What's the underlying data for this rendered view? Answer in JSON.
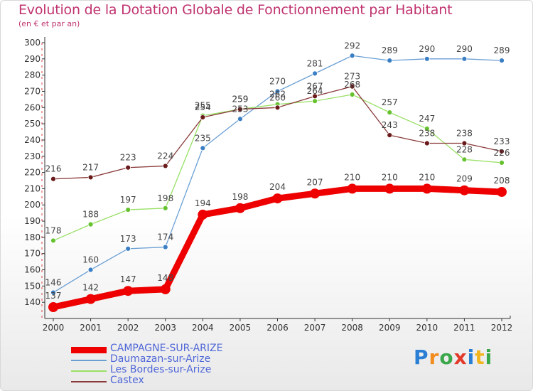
{
  "title": "Evolution de la Dotation Globale de Fonctionnement par Habitant",
  "subtitle": "(en € et par an)",
  "brand": {
    "letters": [
      {
        "ch": "P",
        "color": "#2a7fd4"
      },
      {
        "ch": "r",
        "color": "#f28c1e"
      },
      {
        "ch": "o",
        "color": "#3aa84a"
      },
      {
        "ch": "x",
        "color": "#e23a2a"
      },
      {
        "ch": "i",
        "color": "#2a7fd4"
      },
      {
        "ch": "t",
        "color": "#f2b51e"
      },
      {
        "ch": "i",
        "color": "#3aa84a"
      }
    ]
  },
  "chart_data": {
    "type": "line",
    "x": [
      "2000",
      "2001",
      "2002",
      "2003",
      "2004",
      "2005",
      "2006",
      "2007",
      "2008",
      "2009",
      "2010",
      "2011",
      "2012"
    ],
    "ylim": [
      130,
      300
    ],
    "yticks": [
      140,
      150,
      160,
      170,
      180,
      190,
      200,
      210,
      220,
      230,
      240,
      250,
      260,
      270,
      280,
      290,
      300
    ],
    "grid": false,
    "legend_position": "bottom-left",
    "series": [
      {
        "name": "CAMPAGNE-SUR-ARIZE",
        "color": "#ee0000",
        "marker_color": "#ee0000",
        "values": [
          137,
          142,
          147,
          148,
          194,
          198,
          204,
          207,
          210,
          210,
          210,
          209,
          208
        ]
      },
      {
        "name": "Daumazan-sur-Arize",
        "color": "#6a9fd4",
        "marker_color": "#3a7fc4",
        "values": [
          146,
          160,
          173,
          174,
          235,
          253,
          270,
          281,
          292,
          289,
          290,
          290,
          289
        ]
      },
      {
        "name": "Les Bordes-sur-Arize",
        "color": "#99e066",
        "marker_color": "#66c22e",
        "values": [
          178,
          188,
          197,
          198,
          255,
          259,
          262,
          264,
          268,
          257,
          247,
          228,
          226
        ]
      },
      {
        "name": "Castex",
        "color": "#8a3a3a",
        "marker_color": "#6a1a1a",
        "values": [
          216,
          217,
          223,
          224,
          254,
          259,
          260,
          267,
          273,
          243,
          238,
          238,
          233
        ]
      }
    ]
  }
}
